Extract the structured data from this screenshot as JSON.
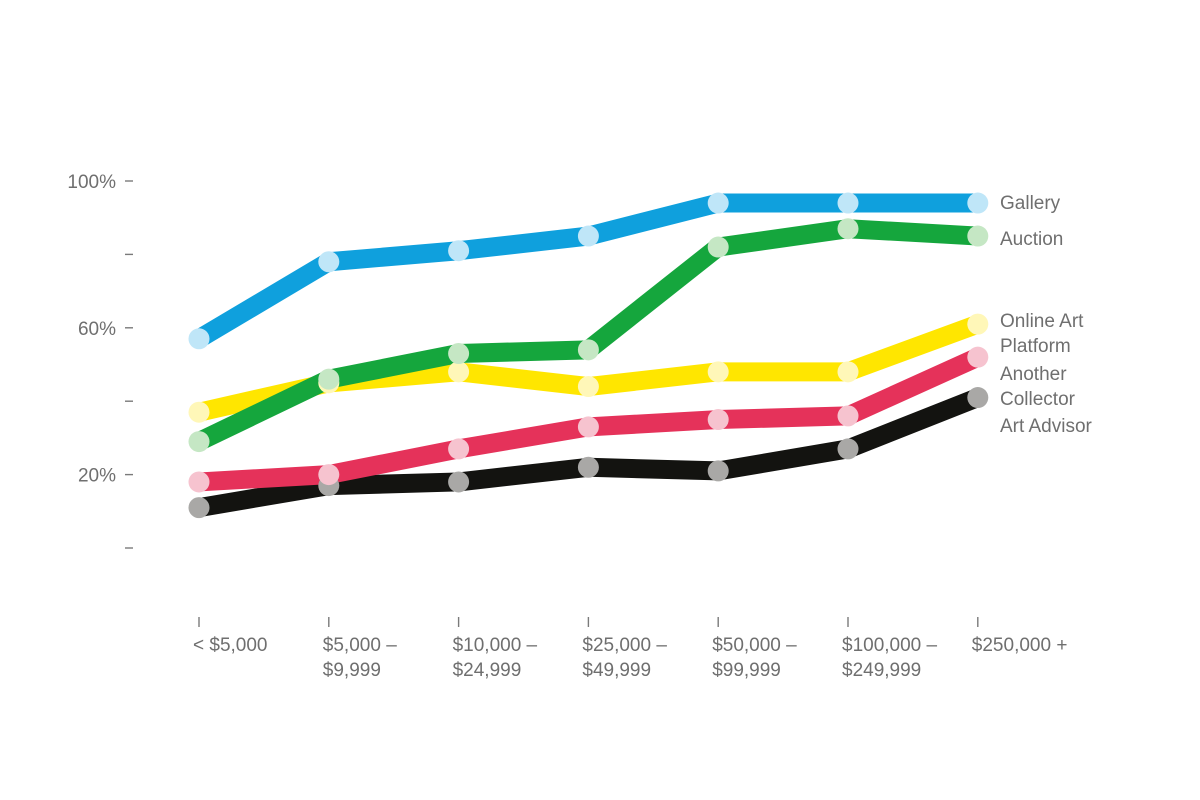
{
  "chart_data": {
    "type": "line",
    "title": "",
    "xlabel": "",
    "ylabel": "",
    "ylim": [
      0,
      110
    ],
    "grid": false,
    "legend_position": "right (labels at line ends)",
    "y_ticks": [
      {
        "value": 100,
        "label": "100%"
      },
      {
        "value": 80,
        "label": ""
      },
      {
        "value": 60,
        "label": "60%"
      },
      {
        "value": 40,
        "label": ""
      },
      {
        "value": 20,
        "label": "20%"
      },
      {
        "value": 0,
        "label": ""
      }
    ],
    "categories": [
      [
        "< $5,000"
      ],
      [
        "$5,000 –",
        "$9,999"
      ],
      [
        "$10,000 –",
        "$24,999"
      ],
      [
        "$25,000 –",
        "$49,999"
      ],
      [
        "$50,000 –",
        "$99,999"
      ],
      [
        "$100,000 –",
        "$249,999"
      ],
      [
        "$250,000 +"
      ]
    ],
    "series": [
      {
        "name": "Gallery",
        "label_lines": [
          "Gallery"
        ],
        "color": "#0fa0dd",
        "dot_color": "#bfe6f8",
        "values": [
          57,
          78,
          81,
          85,
          94,
          94,
          94
        ]
      },
      {
        "name": "Auction",
        "label_lines": [
          "Auction"
        ],
        "color": "#15a63d",
        "dot_color": "#c5e7c4",
        "values": [
          29,
          46,
          53,
          54,
          82,
          87,
          85
        ]
      },
      {
        "name": "Online Art Platform",
        "label_lines": [
          "Online Art",
          "Platform"
        ],
        "color": "#ffe600",
        "dot_color": "#fff7b8",
        "values": [
          37,
          45,
          48,
          44,
          48,
          48,
          61
        ]
      },
      {
        "name": "Another Collector",
        "label_lines": [
          "Another",
          "Collector"
        ],
        "color": "#e5325a",
        "dot_color": "#f6c3cf",
        "values": [
          18,
          20,
          27,
          33,
          35,
          36,
          52
        ]
      },
      {
        "name": "Art Advisor",
        "label_lines": [
          "Art Advisor"
        ],
        "color": "#131310",
        "dot_color": "#a9a8a6",
        "values": [
          11,
          17,
          18,
          22,
          21,
          27,
          41
        ]
      }
    ]
  }
}
